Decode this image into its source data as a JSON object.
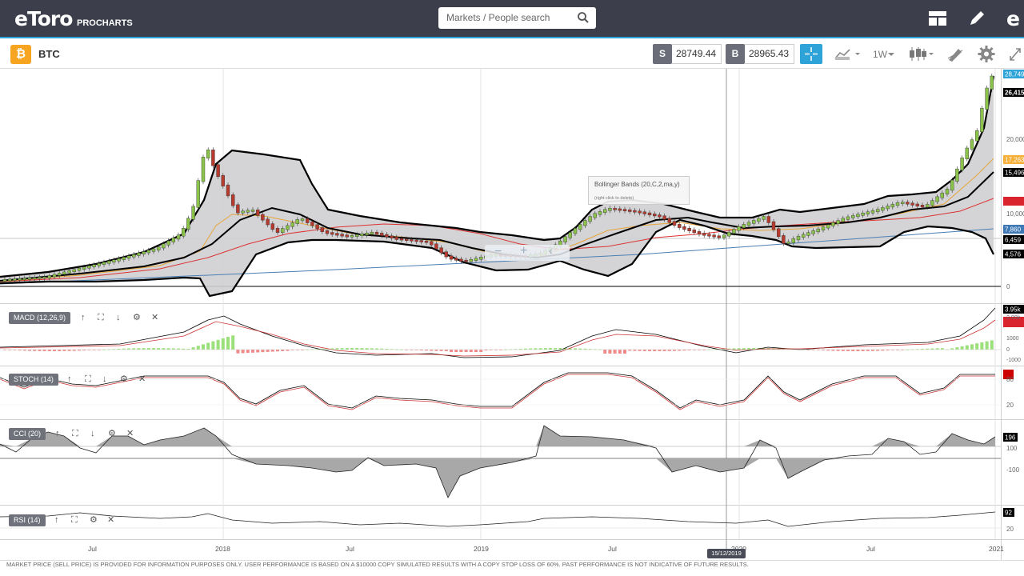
{
  "header": {
    "logo": "eToro",
    "logo_sub": "PROCHARTS",
    "search_placeholder": "Markets / People search"
  },
  "toolbar": {
    "symbol": "BTC",
    "sell_tag": "S",
    "sell_price": "28749.44",
    "buy_tag": "B",
    "buy_price": "28965.43",
    "timeframe": "1W"
  },
  "price_axis": {
    "labels": [
      "28,749",
      "26,415",
      "20,000",
      "17,263",
      "15,496",
      "10,000",
      "7,860",
      "6,459",
      "4,576",
      "0"
    ]
  },
  "macd_axis": {
    "labels": [
      "3.95k",
      "2.00k",
      "1000",
      "0",
      "-1000"
    ]
  },
  "stoch_axis": {
    "labels": [
      "80",
      "20"
    ]
  },
  "cci_axis": {
    "labels": [
      "196",
      "100",
      "-100"
    ]
  },
  "rsi_axis": {
    "labels": [
      "92",
      "20"
    ]
  },
  "time_axis": {
    "labels": [
      "Jul",
      "2018",
      "Jul",
      "2019",
      "Jul",
      "2020",
      "Jul",
      "2021"
    ],
    "cursor_date": "15/12/2019"
  },
  "indicators": {
    "macd": "MACD (12,26,9)",
    "stoch": "STOCH (14)",
    "cci": "CCI (20)",
    "rsi": "RSI (14)"
  },
  "tooltip": {
    "title": "Bollinger Bands (20,C,2,ma,y)",
    "sub": "(right click to delete)"
  },
  "footer": {
    "disclaimer": "MARKET PRICE (SELL PRICE) IS PROVIDED FOR INFORMATION PURPOSES ONLY. USER PERFORMANCE IS BASED ON A $10000 COPY SIMULATED RESULTS WITH A COPY STOP LOSS OF 60%. PAST PERFORMANCE IS NOT INDICATIVE OF FUTURE RESULTS."
  },
  "colors": {
    "header_bg": "#3c3f4b",
    "accent": "#2ea3d8",
    "bitcoin": "#f7a421",
    "bull": "#8bc34a",
    "bear": "#c0392b"
  }
}
